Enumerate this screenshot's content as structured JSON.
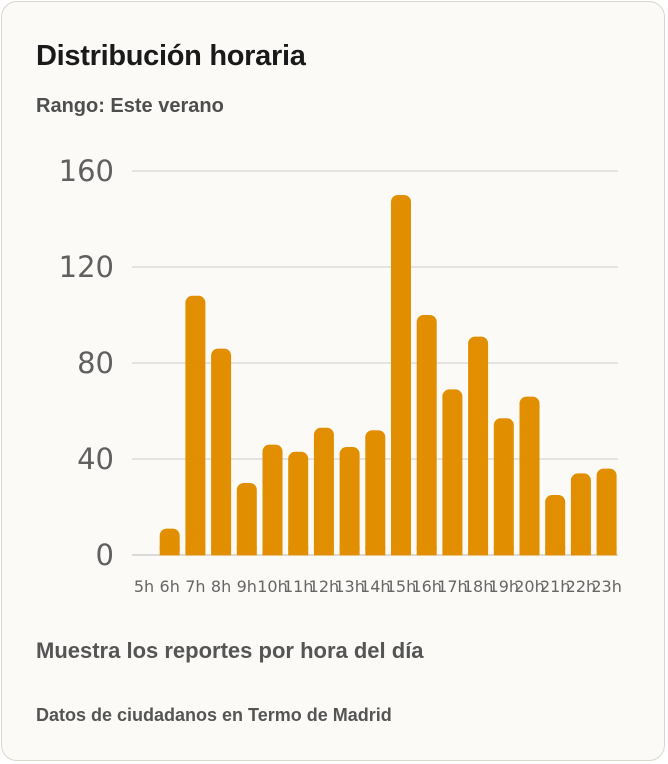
{
  "card": {
    "title": "Distribución horaria",
    "range_label": "Rango: Este verano",
    "description": "Muestra los reportes por hora del día",
    "source": "Datos de ciudadanos en Termo de Madrid"
  },
  "colors": {
    "bar": "#e18f00",
    "grid": "#cccccc",
    "axis": "#bbbbbb"
  },
  "chart_data": {
    "type": "bar",
    "title": "Distribución horaria",
    "subtitle": "Rango: Este verano",
    "xlabel": "",
    "ylabel": "",
    "ylim": [
      0,
      160
    ],
    "yticks": [
      0,
      40,
      80,
      120,
      160
    ],
    "grid": true,
    "legend": "none",
    "categories": [
      "5h",
      "6h",
      "7h",
      "8h",
      "9h",
      "10h",
      "11h",
      "12h",
      "13h",
      "14h",
      "15h",
      "16h",
      "17h",
      "18h",
      "19h",
      "20h",
      "21h",
      "22h",
      "23h"
    ],
    "values": [
      0,
      11,
      108,
      86,
      30,
      46,
      43,
      53,
      45,
      52,
      150,
      100,
      69,
      91,
      57,
      66,
      25,
      34,
      36
    ]
  }
}
